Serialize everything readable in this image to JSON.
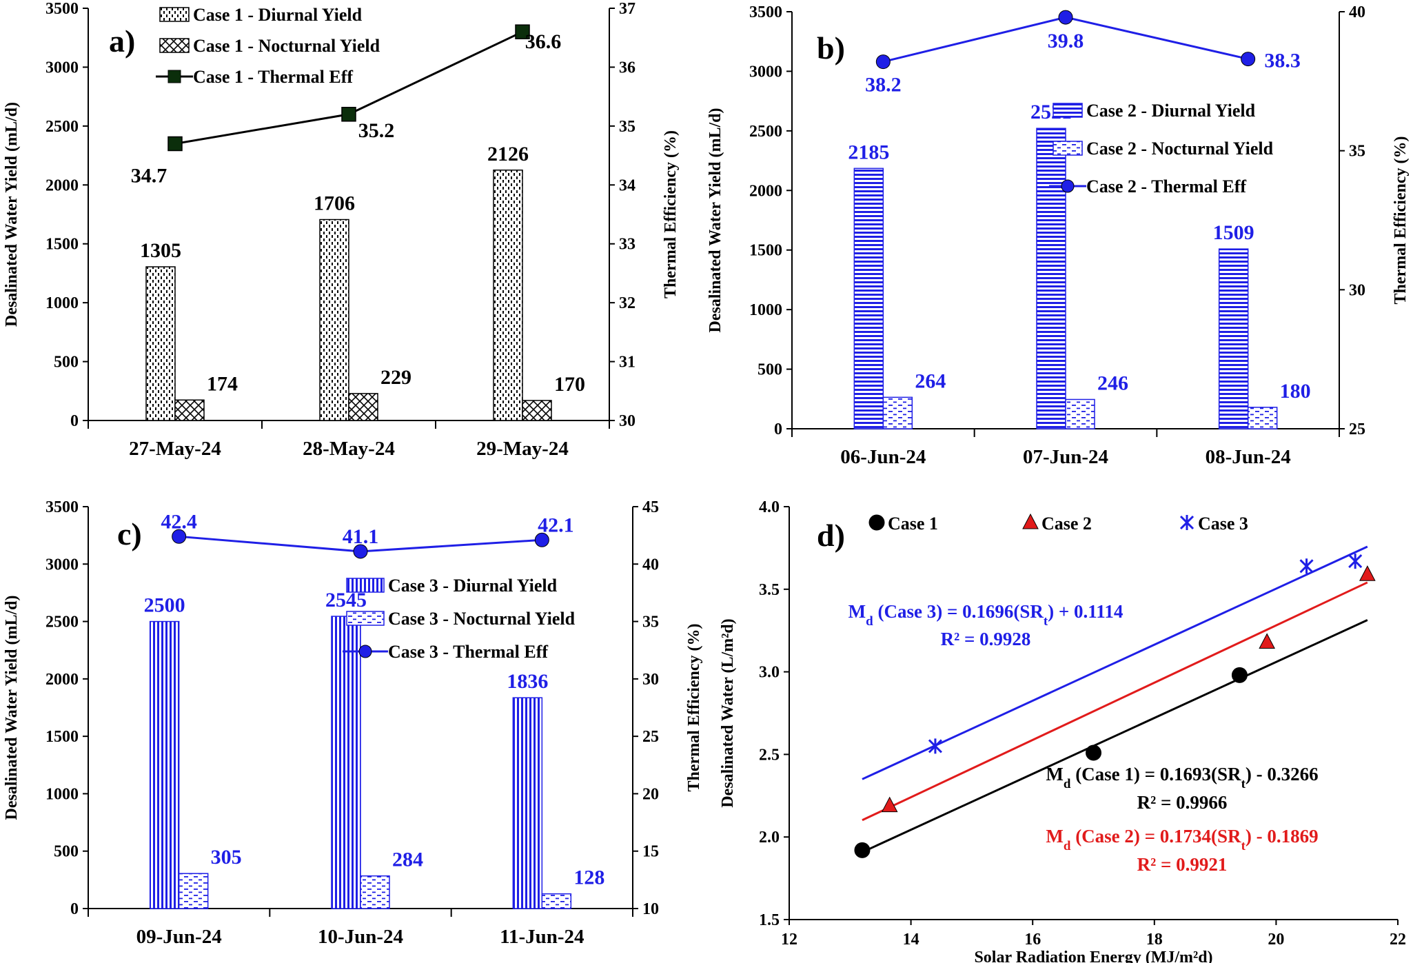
{
  "colors": {
    "black": "#000000",
    "blue": "#1f1fe6",
    "red": "#e11b1b",
    "grid": "#000000"
  },
  "chart_data": [
    {
      "panel_label": "a)",
      "type": "bar+line",
      "categories": [
        "27-May-24",
        "28-May-24",
        "29-May-24"
      ],
      "series": [
        {
          "name": "Case 1 - Diurnal Yield",
          "kind": "bar",
          "pattern": "dots",
          "values": [
            1305,
            1706,
            2126
          ]
        },
        {
          "name": "Case 1 - Nocturnal Yield",
          "kind": "bar",
          "pattern": "cross",
          "values": [
            174,
            229,
            170
          ]
        },
        {
          "name": "Case 1 - Thermal Eff",
          "kind": "line",
          "marker": "square",
          "axis": "right",
          "values": [
            34.7,
            35.2,
            36.6
          ]
        }
      ],
      "ylabel": "Desalinated Water Yield (mL/d)",
      "y2label": "Thermal Efficiency (%)",
      "ylim": [
        0,
        3500
      ],
      "y2lim": [
        30,
        37
      ],
      "yticks": [
        "0",
        "500",
        "1000",
        "1500",
        "2000",
        "2500",
        "3000",
        "3500"
      ],
      "y2ticks": [
        "30",
        "31",
        "32",
        "33",
        "34",
        "35",
        "36",
        "37"
      ],
      "label_color": "black"
    },
    {
      "panel_label": "b)",
      "type": "bar+line",
      "categories": [
        "06-Jun-24",
        "07-Jun-24",
        "08-Jun-24"
      ],
      "series": [
        {
          "name": "Case 2 - Diurnal Yield",
          "kind": "bar",
          "pattern": "hlines",
          "values": [
            2185,
            2521,
            1509
          ]
        },
        {
          "name": "Case 2 - Nocturnal Yield",
          "kind": "bar",
          "pattern": "dashes",
          "values": [
            264,
            246,
            180
          ]
        },
        {
          "name": "Case 2 - Thermal Eff",
          "kind": "line",
          "marker": "circle",
          "axis": "right",
          "values": [
            38.2,
            39.8,
            38.3
          ]
        }
      ],
      "ylabel": "Desalinated Water Yield (mL/d)",
      "y2label": "Thermal Efficiency (%)",
      "ylim": [
        0,
        3500
      ],
      "y2lim": [
        25,
        40
      ],
      "yticks": [
        "0",
        "500",
        "1000",
        "1500",
        "2000",
        "2500",
        "3000",
        "3500"
      ],
      "y2ticks": [
        "25",
        "30",
        "35",
        "40"
      ],
      "label_color": "blue"
    },
    {
      "panel_label": "c)",
      "type": "bar+line",
      "categories": [
        "09-Jun-24",
        "10-Jun-24",
        "11-Jun-24"
      ],
      "series": [
        {
          "name": "Case 3 - Diurnal Yield",
          "kind": "bar",
          "pattern": "vlines",
          "values": [
            2500,
            2545,
            1836
          ]
        },
        {
          "name": "Case 3 - Nocturnal Yield",
          "kind": "bar",
          "pattern": "dashes",
          "values": [
            305,
            284,
            128
          ]
        },
        {
          "name": "Case 3 - Thermal Eff",
          "kind": "line",
          "marker": "circle",
          "axis": "right",
          "values": [
            42.4,
            41.1,
            42.1
          ]
        }
      ],
      "ylabel": "Desalinated Water Yield (mL/d)",
      "y2label": "Thermal Efficiency (%)",
      "ylim": [
        0,
        3500
      ],
      "y2lim": [
        10,
        45
      ],
      "yticks": [
        "0",
        "500",
        "1000",
        "1500",
        "2000",
        "2500",
        "3000",
        "3500"
      ],
      "y2ticks": [
        "10",
        "15",
        "20",
        "25",
        "30",
        "35",
        "40",
        "45"
      ],
      "label_color": "blue"
    },
    {
      "panel_label": "d)",
      "type": "scatter",
      "xlabel": "Solar Radiation Energy (MJ/m²d)",
      "ylabel": "Desalinated Water (L/m²d)",
      "xlim": [
        12,
        22
      ],
      "ylim": [
        1.5,
        4.0
      ],
      "xticks": [
        "12",
        "14",
        "16",
        "18",
        "20",
        "22"
      ],
      "yticks": [
        "1.5",
        "2.0",
        "2.5",
        "3.0",
        "3.5",
        "4.0"
      ],
      "series": [
        {
          "name": "Case 1",
          "marker": "circle",
          "color": "black",
          "x": [
            13.2,
            17.0,
            19.4
          ],
          "y": [
            1.92,
            2.51,
            2.98
          ],
          "fit": {
            "slope": 0.1693,
            "intercept": -0.3266,
            "range": [
              13.2,
              21.5
            ]
          },
          "equation": {
            "lhs": "M",
            "sub": "d",
            "mid": " (Case 1) = 0.1693(SR",
            "sub2": "t",
            "rhs": ") - 0.3266"
          },
          "r2": "R² = 0.9966"
        },
        {
          "name": "Case 2",
          "marker": "triangle",
          "color": "red",
          "x": [
            13.65,
            19.85,
            21.5
          ],
          "y": [
            2.19,
            3.18,
            3.59
          ],
          "fit": {
            "slope": 0.1734,
            "intercept": -0.1869,
            "range": [
              13.2,
              21.5
            ]
          },
          "equation": {
            "lhs": "M",
            "sub": "d",
            "mid": " (Case 2) = 0.1734(SR",
            "sub2": "t",
            "rhs": ") - 0.1869"
          },
          "r2": "R² = 0.9921"
        },
        {
          "name": "Case 3",
          "marker": "asterisk",
          "color": "blue",
          "x": [
            14.4,
            20.5,
            21.3
          ],
          "y": [
            2.55,
            3.64,
            3.67
          ],
          "fit": {
            "slope": 0.1696,
            "intercept": 0.1114,
            "range": [
              13.2,
              21.5
            ]
          },
          "equation": {
            "lhs": "M",
            "sub": "d",
            "mid": " (Case 3) = 0.1696(SR",
            "sub2": "t",
            "rhs": ") + 0.1114"
          },
          "r2": "R² = 0.9928"
        }
      ]
    }
  ]
}
